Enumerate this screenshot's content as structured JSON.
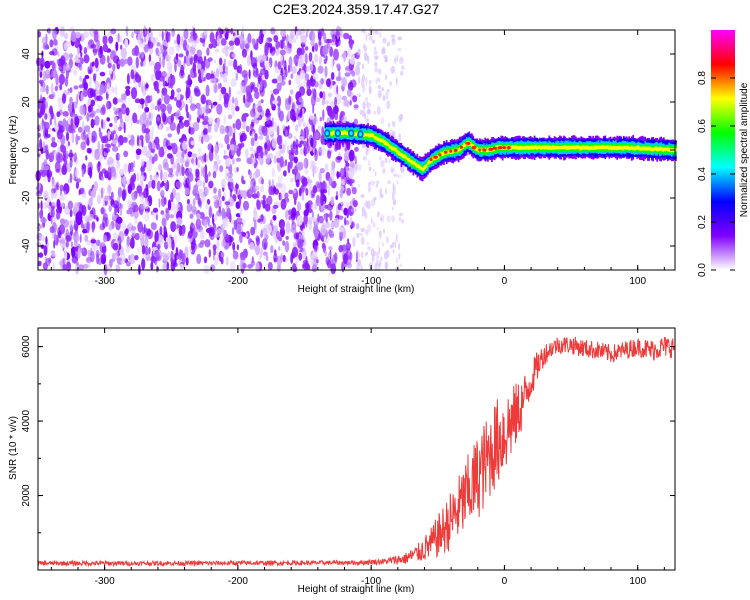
{
  "chart_data": [
    {
      "type": "heatmap",
      "title": "C2E3.2024.359.17.47.G27",
      "xlabel": "Height of straight line (km)",
      "ylabel": "Frequency (Hz)",
      "xlim": [
        -350,
        128
      ],
      "ylim": [
        -50,
        50
      ],
      "xticks": [
        -300,
        -200,
        -100,
        0,
        100
      ],
      "yticks": [
        -40,
        -20,
        0,
        20,
        40
      ],
      "colorbar": {
        "label": "Normalized spectral amplitude",
        "range": [
          0.0,
          1.0
        ],
        "ticks": [
          0.0,
          0.2,
          0.4,
          0.6,
          0.8
        ],
        "tick_labels": [
          "0.0",
          "0.2",
          "0.4",
          "0.6",
          "0.8"
        ],
        "colormap": [
          "#ffffff",
          "#8000ff",
          "#0000ff",
          "#00ffff",
          "#00ff00",
          "#ffff00",
          "#ff0000",
          "#ff00ff"
        ]
      },
      "noise_region_km": [
        -350,
        -76
      ],
      "signal_track": {
        "x": [
          -135,
          -115,
          -100,
          -90,
          -80,
          -70,
          -62,
          -55,
          -45,
          -35,
          -28,
          -20,
          -12,
          -5,
          0,
          10,
          30,
          60,
          90,
          128
        ],
        "y": [
          7,
          7,
          6,
          3,
          -1,
          -5,
          -8,
          -4,
          -1,
          0,
          3,
          0,
          0,
          1,
          1,
          1,
          1,
          1,
          1,
          0
        ]
      }
    },
    {
      "type": "line",
      "xlabel": "Height of straight line (km)",
      "ylabel": "SNR (10 * v/v)",
      "xlim": [
        -350,
        128
      ],
      "ylim": [
        0,
        6500
      ],
      "xticks": [
        -300,
        -200,
        -100,
        0,
        100
      ],
      "yticks": [
        2000,
        4000,
        6000
      ],
      "color": "#ef3a3a",
      "series": [
        {
          "x": [
            -350,
            -300,
            -250,
            -200,
            -150,
            -110,
            -90,
            -75,
            -65,
            -55,
            -45,
            -35,
            -25,
            -15,
            -8,
            0,
            8,
            15,
            20,
            25,
            30,
            35,
            40,
            50,
            60,
            70,
            80,
            90,
            100,
            110,
            120,
            128
          ],
          "y": [
            180,
            180,
            180,
            185,
            190,
            200,
            230,
            300,
            450,
            700,
            1100,
            1600,
            2200,
            2800,
            3300,
            3700,
            4100,
            4600,
            5100,
            5500,
            5800,
            5950,
            6050,
            6050,
            5950,
            5900,
            5800,
            5900,
            6000,
            5900,
            6000,
            6000
          ],
          "noise_amplitude": [
            60,
            60,
            60,
            60,
            60,
            60,
            80,
            150,
            250,
            450,
            700,
            900,
            1100,
            1200,
            1200,
            1200,
            900,
            700,
            500,
            400,
            300,
            250,
            250,
            250,
            250,
            250,
            250,
            250,
            250,
            300,
            300,
            300
          ]
        }
      ]
    }
  ]
}
